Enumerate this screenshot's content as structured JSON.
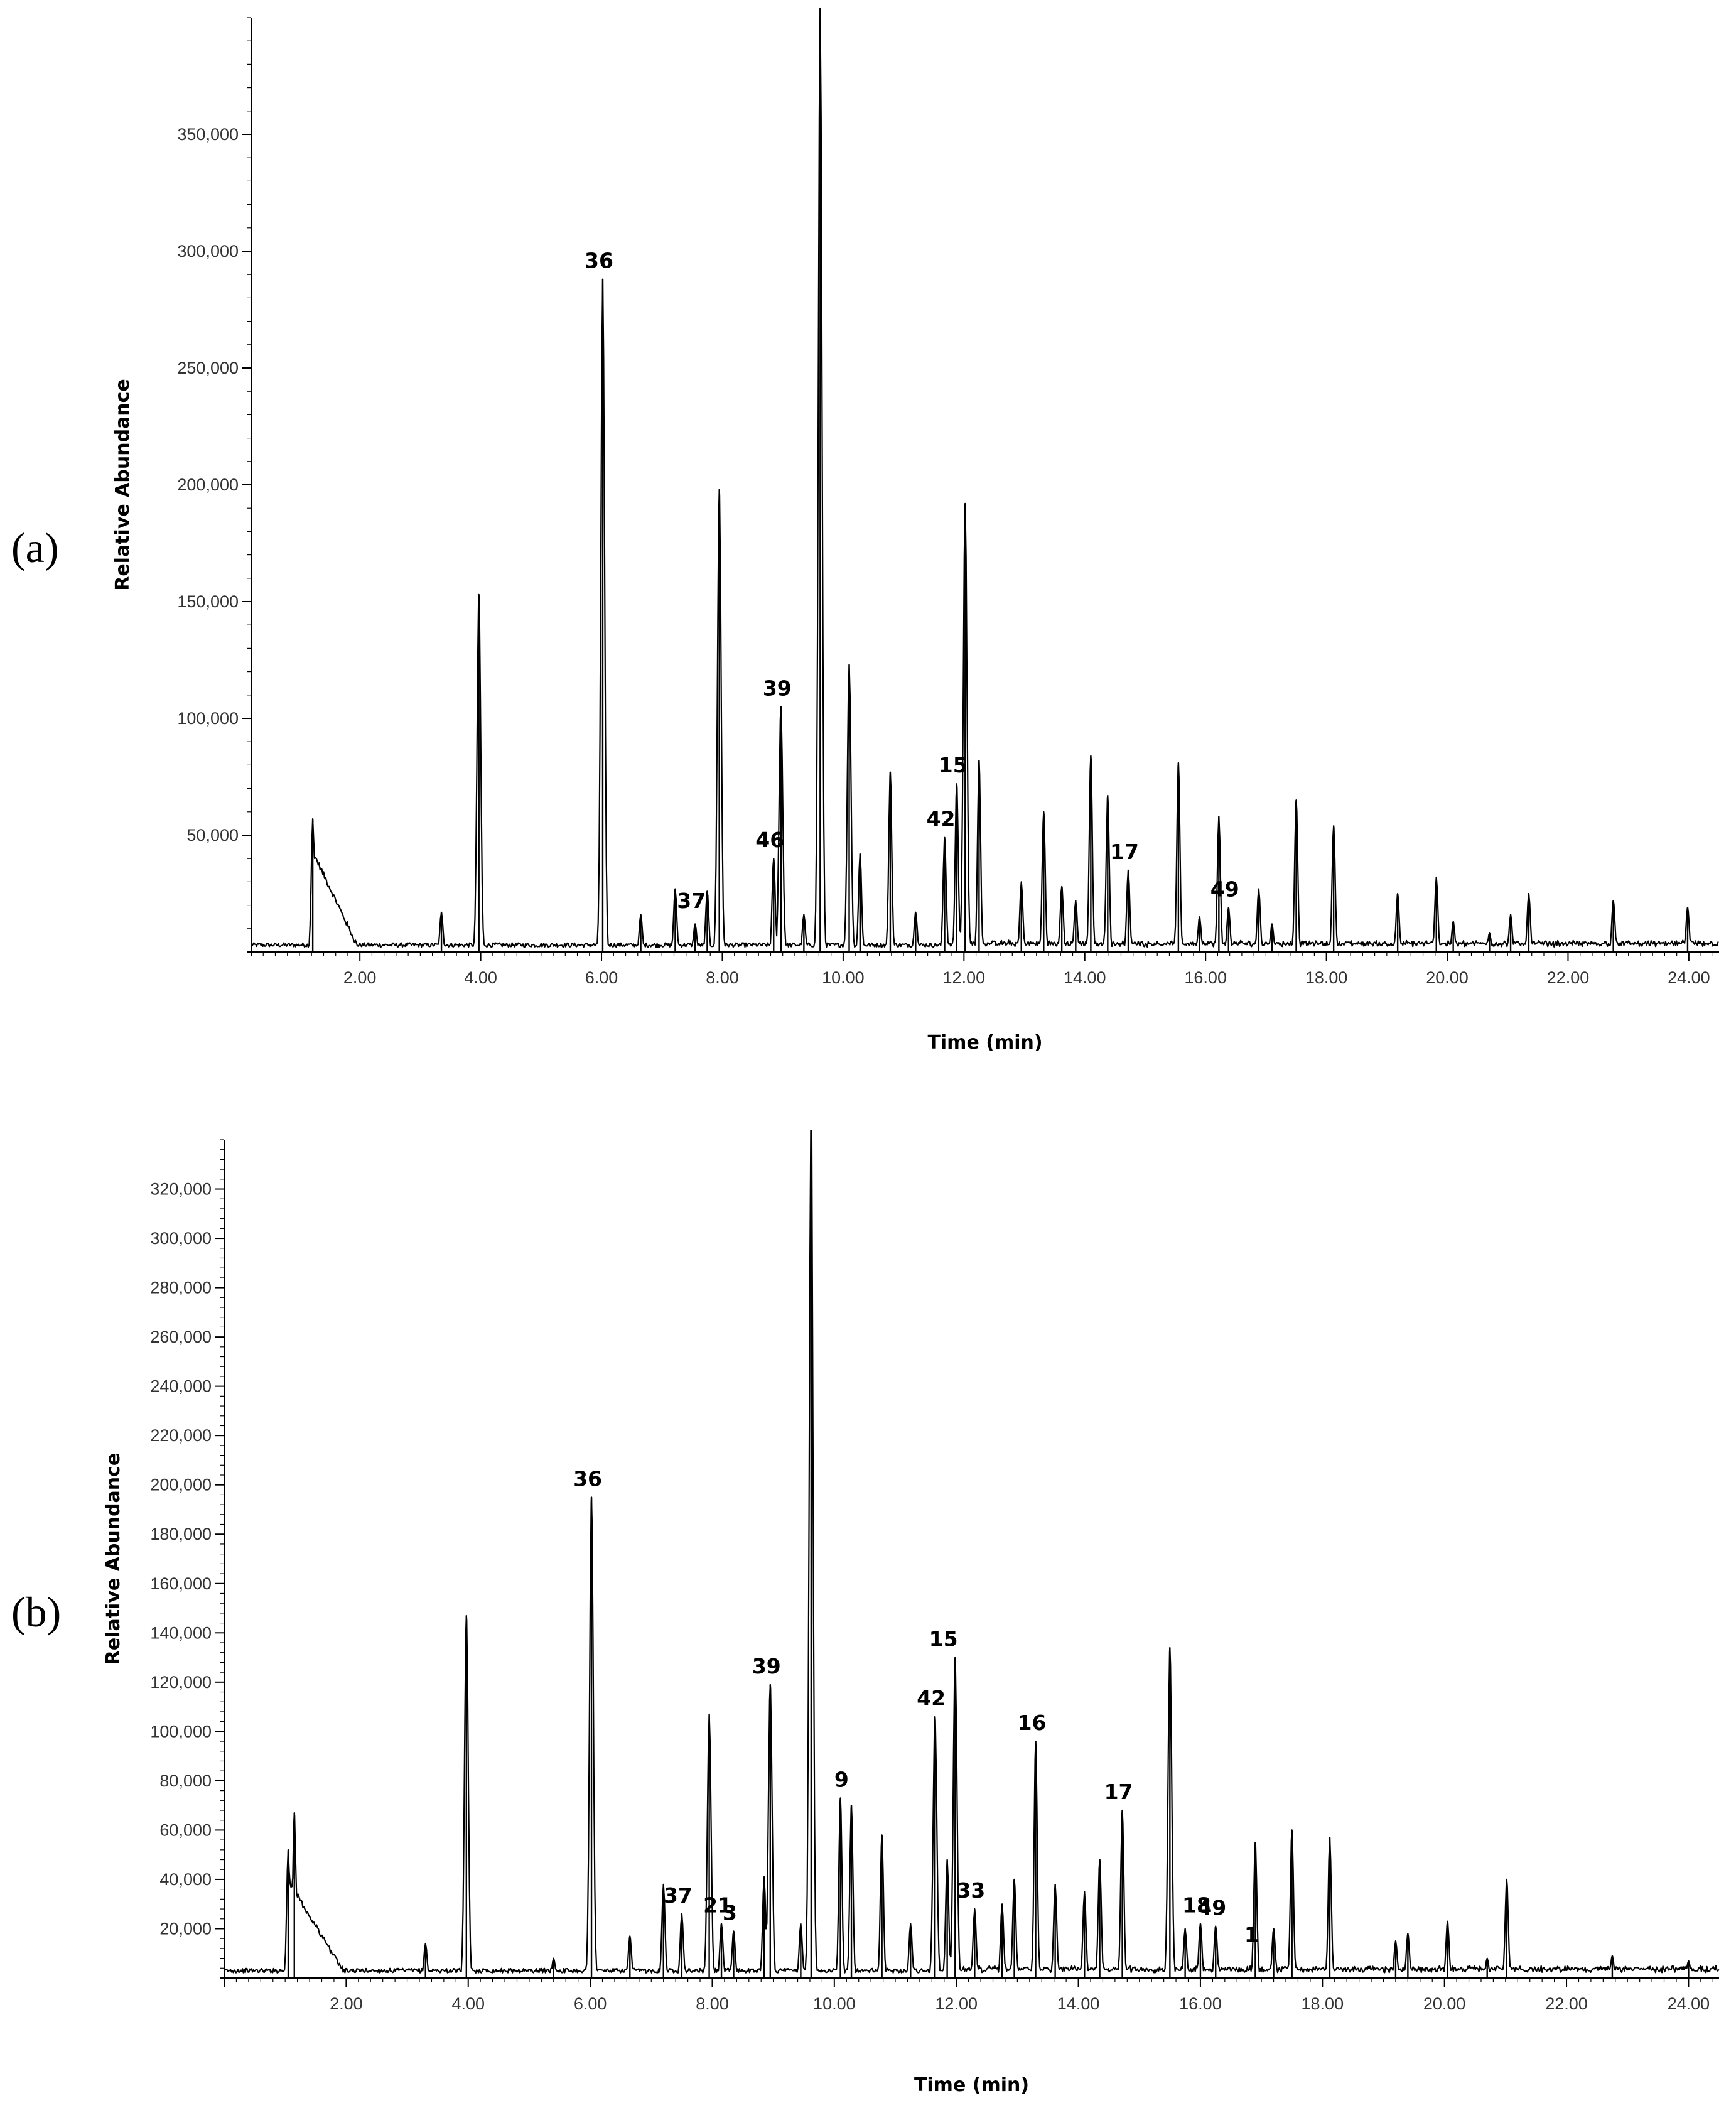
{
  "chart_data": [
    {
      "type": "line",
      "panel_label": "(a)",
      "xlabel": "Time (min)",
      "ylabel": "Relative Abundance",
      "xlim": [
        0.2,
        24.5
      ],
      "ylim": [
        0,
        400000
      ],
      "x_ticks": [
        "2.00",
        "4.00",
        "6.00",
        "8.00",
        "10.00",
        "12.00",
        "14.00",
        "16.00",
        "18.00",
        "20.00",
        "22.00",
        "24.00"
      ],
      "y_ticks": [
        "50,000",
        "100,000",
        "150,000",
        "200,000",
        "250,000",
        "300,000",
        "350,000"
      ],
      "y_tick_values": [
        50000,
        100000,
        150000,
        200000,
        250000,
        300000,
        350000
      ],
      "peaks": [
        {
          "x": 1.22,
          "y": 57000
        },
        {
          "x": 3.35,
          "y": 17000
        },
        {
          "x": 3.97,
          "y": 153000
        },
        {
          "x": 6.02,
          "y": 288000
        },
        {
          "x": 6.65,
          "y": 16000
        },
        {
          "x": 7.22,
          "y": 27000
        },
        {
          "x": 7.55,
          "y": 12000
        },
        {
          "x": 7.75,
          "y": 26000
        },
        {
          "x": 7.95,
          "y": 198000
        },
        {
          "x": 8.85,
          "y": 40000
        },
        {
          "x": 8.97,
          "y": 105000
        },
        {
          "x": 9.35,
          "y": 16000
        },
        {
          "x": 9.62,
          "y": 405000
        },
        {
          "x": 10.1,
          "y": 123000
        },
        {
          "x": 10.28,
          "y": 42000
        },
        {
          "x": 10.78,
          "y": 77000
        },
        {
          "x": 11.2,
          "y": 17000
        },
        {
          "x": 11.68,
          "y": 49000
        },
        {
          "x": 11.88,
          "y": 72000
        },
        {
          "x": 12.02,
          "y": 192000
        },
        {
          "x": 12.25,
          "y": 82000
        },
        {
          "x": 12.95,
          "y": 30000
        },
        {
          "x": 13.32,
          "y": 60000
        },
        {
          "x": 13.62,
          "y": 28000
        },
        {
          "x": 13.85,
          "y": 22000
        },
        {
          "x": 14.1,
          "y": 84000
        },
        {
          "x": 14.38,
          "y": 67000
        },
        {
          "x": 14.72,
          "y": 35000
        },
        {
          "x": 15.55,
          "y": 81000
        },
        {
          "x": 15.9,
          "y": 15000
        },
        {
          "x": 16.22,
          "y": 58000
        },
        {
          "x": 16.38,
          "y": 19000
        },
        {
          "x": 16.88,
          "y": 27000
        },
        {
          "x": 17.1,
          "y": 12000
        },
        {
          "x": 17.5,
          "y": 65000
        },
        {
          "x": 18.12,
          "y": 54000
        },
        {
          "x": 19.18,
          "y": 25000
        },
        {
          "x": 19.82,
          "y": 32000
        },
        {
          "x": 20.1,
          "y": 13000
        },
        {
          "x": 20.7,
          "y": 8000
        },
        {
          "x": 21.05,
          "y": 16000
        },
        {
          "x": 21.35,
          "y": 25000
        },
        {
          "x": 22.75,
          "y": 22000
        },
        {
          "x": 23.98,
          "y": 19000
        }
      ],
      "annotations": [
        {
          "label": "36",
          "x": 6.02,
          "y": 288000
        },
        {
          "label": "37",
          "x": 7.55,
          "y": 14000
        },
        {
          "label": "46",
          "x": 8.85,
          "y": 40000
        },
        {
          "label": "39",
          "x": 8.97,
          "y": 105000
        },
        {
          "label": "42",
          "x": 11.68,
          "y": 49000
        },
        {
          "label": "15",
          "x": 11.88,
          "y": 72000
        },
        {
          "label": "17",
          "x": 14.72,
          "y": 35000
        },
        {
          "label": "49",
          "x": 16.38,
          "y": 19000
        }
      ]
    },
    {
      "type": "line",
      "panel_label": "(b)",
      "xlabel": "Time (min)",
      "ylabel": "Relative Abundance",
      "xlim": [
        0.0,
        24.5
      ],
      "ylim": [
        0,
        340000
      ],
      "x_ticks": [
        "2.00",
        "4.00",
        "6.00",
        "8.00",
        "10.00",
        "12.00",
        "14.00",
        "16.00",
        "18.00",
        "20.00",
        "22.00",
        "24.00"
      ],
      "y_ticks": [
        "20,000",
        "40,000",
        "60,000",
        "80,000",
        "100,000",
        "120,000",
        "140,000",
        "160,000",
        "180,000",
        "200,000",
        "220,000",
        "240,000",
        "260,000",
        "280,000",
        "300,000",
        "320,000"
      ],
      "y_tick_values": [
        20000,
        40000,
        60000,
        80000,
        100000,
        120000,
        140000,
        160000,
        180000,
        200000,
        220000,
        240000,
        260000,
        280000,
        300000,
        320000
      ],
      "peaks": [
        {
          "x": 1.05,
          "y": 52000
        },
        {
          "x": 1.15,
          "y": 67000
        },
        {
          "x": 3.3,
          "y": 14000
        },
        {
          "x": 3.97,
          "y": 147000
        },
        {
          "x": 5.4,
          "y": 8000
        },
        {
          "x": 6.02,
          "y": 195000
        },
        {
          "x": 6.65,
          "y": 17000
        },
        {
          "x": 7.2,
          "y": 38000
        },
        {
          "x": 7.5,
          "y": 26000
        },
        {
          "x": 7.95,
          "y": 107000
        },
        {
          "x": 8.15,
          "y": 22000
        },
        {
          "x": 8.35,
          "y": 19000
        },
        {
          "x": 8.85,
          "y": 41000
        },
        {
          "x": 8.95,
          "y": 119000
        },
        {
          "x": 9.45,
          "y": 22000
        },
        {
          "x": 9.62,
          "y": 360000
        },
        {
          "x": 10.1,
          "y": 73000
        },
        {
          "x": 10.28,
          "y": 70000
        },
        {
          "x": 10.78,
          "y": 58000
        },
        {
          "x": 11.25,
          "y": 22000
        },
        {
          "x": 11.65,
          "y": 106000
        },
        {
          "x": 11.85,
          "y": 48000
        },
        {
          "x": 11.98,
          "y": 130000
        },
        {
          "x": 12.3,
          "y": 28000
        },
        {
          "x": 12.75,
          "y": 30000
        },
        {
          "x": 12.95,
          "y": 40000
        },
        {
          "x": 13.3,
          "y": 96000
        },
        {
          "x": 13.62,
          "y": 38000
        },
        {
          "x": 14.1,
          "y": 35000
        },
        {
          "x": 14.35,
          "y": 48000
        },
        {
          "x": 14.72,
          "y": 68000
        },
        {
          "x": 15.5,
          "y": 134000
        },
        {
          "x": 15.75,
          "y": 20000
        },
        {
          "x": 16.0,
          "y": 22000
        },
        {
          "x": 16.25,
          "y": 21000
        },
        {
          "x": 16.9,
          "y": 55000
        },
        {
          "x": 17.2,
          "y": 20000
        },
        {
          "x": 17.5,
          "y": 60000
        },
        {
          "x": 18.12,
          "y": 57000
        },
        {
          "x": 19.2,
          "y": 15000
        },
        {
          "x": 19.4,
          "y": 18000
        },
        {
          "x": 20.05,
          "y": 23000
        },
        {
          "x": 20.7,
          "y": 8000
        },
        {
          "x": 21.02,
          "y": 40000
        },
        {
          "x": 22.75,
          "y": 9000
        },
        {
          "x": 24.0,
          "y": 7000
        }
      ],
      "annotations": [
        {
          "label": "36",
          "x": 6.02,
          "y": 195000
        },
        {
          "label": "37",
          "x": 7.5,
          "y": 26000
        },
        {
          "label": "21",
          "x": 8.15,
          "y": 22000
        },
        {
          "label": "3",
          "x": 8.35,
          "y": 19000
        },
        {
          "label": "39",
          "x": 8.95,
          "y": 119000
        },
        {
          "label": "9",
          "x": 10.18,
          "y": 73000
        },
        {
          "label": "42",
          "x": 11.65,
          "y": 106000
        },
        {
          "label": "15",
          "x": 11.85,
          "y": 130000
        },
        {
          "label": "33",
          "x": 12.3,
          "y": 28000
        },
        {
          "label": "16",
          "x": 13.3,
          "y": 96000
        },
        {
          "label": "17",
          "x": 14.72,
          "y": 68000
        },
        {
          "label": "18",
          "x": 16.0,
          "y": 22000
        },
        {
          "label": "49",
          "x": 16.25,
          "y": 21000
        },
        {
          "label": "1",
          "x": 16.9,
          "y": 10000
        }
      ]
    }
  ]
}
